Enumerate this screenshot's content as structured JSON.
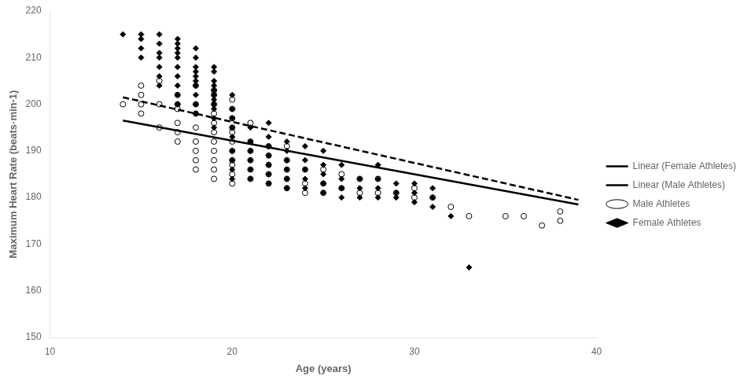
{
  "chart_data": {
    "type": "scatter",
    "x_label": "Age (years)",
    "y_label": "Maximum Heart Rate (beats·min-1)",
    "xlim": [
      10,
      40
    ],
    "ylim": [
      150,
      220
    ],
    "xticks": [
      10,
      20,
      30,
      40
    ],
    "yticks": [
      150,
      160,
      170,
      180,
      190,
      200,
      210,
      220
    ],
    "grid": false,
    "legend": "right",
    "series": [
      {
        "name": "Male Athletes",
        "type": "scatter",
        "marker": "open_circle",
        "color": "black",
        "x": [
          14,
          15,
          15,
          15,
          15,
          16,
          16,
          16,
          17,
          17,
          17,
          17,
          17,
          17,
          18,
          18,
          18,
          18,
          18,
          18,
          18,
          18,
          19,
          19,
          19,
          19,
          19,
          19,
          19,
          19,
          19,
          19,
          19,
          20,
          20,
          20,
          20,
          20,
          20,
          20,
          20,
          20,
          20,
          20,
          21,
          21,
          21,
          21,
          21,
          21,
          22,
          22,
          22,
          22,
          22,
          23,
          23,
          23,
          23,
          23,
          24,
          24,
          24,
          25,
          25,
          25,
          26,
          26,
          27,
          27,
          28,
          28,
          29,
          30,
          30,
          31,
          32,
          33,
          35,
          36,
          37,
          38,
          38
        ],
        "values": [
          200,
          198,
          200,
          202,
          204,
          195,
          200,
          205,
          192,
          194,
          196,
          199,
          200,
          202,
          186,
          188,
          190,
          192,
          195,
          198,
          200,
          204,
          184,
          186,
          188,
          190,
          192,
          194,
          196,
          198,
          200,
          202,
          203,
          183,
          185,
          187,
          188,
          190,
          192,
          194,
          195,
          197,
          199,
          201,
          184,
          186,
          188,
          190,
          192,
          196,
          183,
          185,
          187,
          189,
          191,
          182,
          184,
          186,
          188,
          191,
          181,
          183,
          186,
          181,
          183,
          186,
          182,
          185,
          181,
          184,
          181,
          184,
          181,
          180,
          182,
          180,
          178,
          176,
          176,
          176,
          174,
          175,
          177
        ]
      },
      {
        "name": "Female Athletes",
        "type": "scatter",
        "marker": "diamond",
        "color": "black",
        "x": [
          14,
          15,
          15,
          15,
          15,
          16,
          16,
          16,
          16,
          16,
          16,
          16,
          17,
          17,
          17,
          17,
          17,
          17,
          17,
          17,
          17,
          17,
          18,
          18,
          18,
          18,
          18,
          18,
          18,
          18,
          18,
          18,
          19,
          19,
          19,
          19,
          19,
          19,
          19,
          19,
          19,
          19,
          19,
          20,
          20,
          20,
          20,
          20,
          20,
          20,
          20,
          20,
          21,
          21,
          21,
          21,
          21,
          21,
          22,
          22,
          22,
          22,
          22,
          22,
          22,
          23,
          23,
          23,
          23,
          23,
          23,
          24,
          24,
          24,
          24,
          24,
          25,
          25,
          25,
          25,
          25,
          26,
          26,
          26,
          26,
          27,
          27,
          27,
          28,
          28,
          28,
          28,
          29,
          29,
          29,
          30,
          30,
          30,
          31,
          31,
          31,
          32,
          33
        ],
        "values": [
          215,
          210,
          212,
          214,
          215,
          204,
          206,
          208,
          210,
          211,
          213,
          215,
          200,
          202,
          204,
          206,
          208,
          210,
          211,
          212,
          213,
          214,
          198,
          200,
          202,
          204,
          206,
          208,
          210,
          212,
          205,
          207,
          195,
          197,
          199,
          201,
          203,
          205,
          207,
          208,
          200,
          202,
          204,
          184,
          186,
          188,
          190,
          193,
          195,
          197,
          199,
          202,
          184,
          186,
          188,
          190,
          192,
          195,
          183,
          185,
          187,
          189,
          191,
          193,
          196,
          182,
          184,
          186,
          188,
          190,
          192,
          182,
          184,
          186,
          188,
          191,
          181,
          183,
          185,
          187,
          190,
          180,
          182,
          184,
          187,
          180,
          182,
          184,
          180,
          182,
          184,
          187,
          180,
          181,
          183,
          179,
          181,
          183,
          178,
          180,
          182,
          176,
          165
        ]
      },
      {
        "name": "Linear (Female Athletes)",
        "type": "line",
        "line_style": "dashed",
        "color": "black",
        "x": [
          14,
          39
        ],
        "values": [
          201.5,
          179.5
        ]
      },
      {
        "name": "Linear (Male Athletes)",
        "type": "line",
        "line_style": "solid",
        "color": "black",
        "x": [
          14,
          39
        ],
        "values": [
          196.5,
          178.5
        ]
      }
    ]
  }
}
